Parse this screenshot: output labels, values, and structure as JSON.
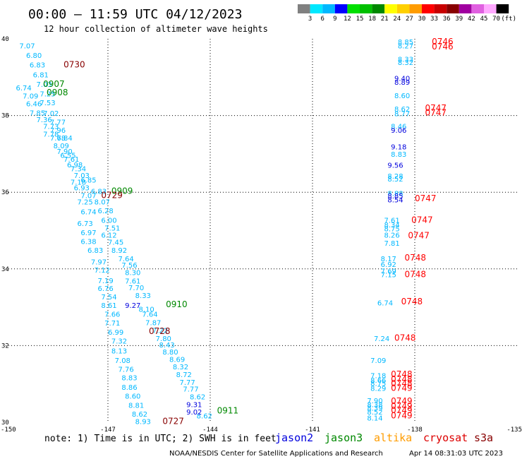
{
  "header": {
    "title": "00:00 – 11:59 UTC 04/12/2023",
    "subtitle": "12 hour collection of altimeter wave heights"
  },
  "colorbar": {
    "labels": [
      "3",
      "6",
      "9",
      "12",
      "15",
      "18",
      "21",
      "24",
      "27",
      "30",
      "33",
      "36",
      "39",
      "42",
      "45",
      "70",
      "(ft)"
    ],
    "colors": [
      "#808080",
      "#00e8ff",
      "#00b8ff",
      "#0000ff",
      "#00e000",
      "#00c000",
      "#008800",
      "#ffff00",
      "#ffd000",
      "#ff9c00",
      "#ff0000",
      "#c80000",
      "#880000",
      "#a000a0",
      "#e060e0",
      "#ffa8ff",
      "#000000"
    ]
  },
  "legend": {
    "note": "note:  1) Time is in UTC; 2) SWH is in feet",
    "satellites": [
      {
        "name": "jason2",
        "color": "#0000dd"
      },
      {
        "name": "jason3",
        "color": "#008800"
      },
      {
        "name": "altika",
        "color": "#ff9c00"
      },
      {
        "name": "cryosat",
        "color": "#dd0000"
      },
      {
        "name": "s3a",
        "color": "#880000"
      }
    ]
  },
  "footer": {
    "credit": "NOAA/NESDIS Center for Satellite Applications and Research",
    "timestamp": "Apr 14 08:31:03 UTC 2023"
  },
  "chart_data": {
    "type": "scatter",
    "title": "00:00 – 11:59 UTC 04/12/2023",
    "subtitle": "12 hour collection of altimeter wave heights",
    "xlim": [
      -150,
      -135
    ],
    "ylim": [
      30,
      40
    ],
    "x_ticks": [
      "-150",
      "-147",
      "-144",
      "-141",
      "-138",
      "-135"
    ],
    "y_ticks": [
      "30",
      "32",
      "34",
      "36",
      "38",
      "40"
    ],
    "grid": true,
    "colors": {
      "cyan": "#00b8ff",
      "blue": "#0000dd",
      "green": "#008800",
      "maroon": "#880000",
      "red": "#ff0000"
    },
    "points": [
      {
        "x": -149.6,
        "y": 39.75,
        "v": "7.07",
        "c": "cyan"
      },
      {
        "x": -149.4,
        "y": 39.5,
        "v": "6.80",
        "c": "cyan"
      },
      {
        "x": -149.3,
        "y": 39.25,
        "v": "6.83",
        "c": "cyan"
      },
      {
        "x": -149.2,
        "y": 39.0,
        "v": "6.81",
        "c": "cyan"
      },
      {
        "x": -149.1,
        "y": 38.75,
        "v": "7.03",
        "c": "cyan"
      },
      {
        "x": -149.7,
        "y": 38.66,
        "v": "6.74",
        "c": "cyan"
      },
      {
        "x": -149.0,
        "y": 38.5,
        "v": "7.25",
        "c": "cyan"
      },
      {
        "x": -149.5,
        "y": 38.44,
        "v": "7.09",
        "c": "cyan"
      },
      {
        "x": -149.0,
        "y": 38.27,
        "v": "7.53",
        "c": "cyan"
      },
      {
        "x": -149.4,
        "y": 38.24,
        "v": "6.46",
        "c": "cyan"
      },
      {
        "x": -149.3,
        "y": 38.0,
        "v": "7.85",
        "c": "cyan"
      },
      {
        "x": -148.9,
        "y": 37.99,
        "v": "7.02",
        "c": "cyan"
      },
      {
        "x": -149.1,
        "y": 37.83,
        "v": "7.36",
        "c": "cyan"
      },
      {
        "x": -148.7,
        "y": 37.76,
        "v": "7.77",
        "c": "cyan"
      },
      {
        "x": -148.9,
        "y": 37.65,
        "v": "7.73",
        "c": "cyan"
      },
      {
        "x": -148.7,
        "y": 37.55,
        "v": "7.96",
        "c": "cyan"
      },
      {
        "x": -148.9,
        "y": 37.45,
        "v": "7.78",
        "c": "cyan"
      },
      {
        "x": -148.7,
        "y": 37.35,
        "v": "7.68",
        "c": "cyan"
      },
      {
        "x": -148.5,
        "y": 37.35,
        "v": "7.84",
        "c": "cyan"
      },
      {
        "x": -148.6,
        "y": 37.15,
        "v": "8.09",
        "c": "cyan"
      },
      {
        "x": -148.5,
        "y": 37.0,
        "v": "7.90",
        "c": "cyan"
      },
      {
        "x": -148.4,
        "y": 36.9,
        "v": "6.55",
        "c": "cyan"
      },
      {
        "x": -148.3,
        "y": 36.8,
        "v": "7.61",
        "c": "cyan"
      },
      {
        "x": -148.2,
        "y": 36.65,
        "v": "6.98",
        "c": "cyan"
      },
      {
        "x": -148.1,
        "y": 36.55,
        "v": "7.34",
        "c": "cyan"
      },
      {
        "x": -148.0,
        "y": 36.37,
        "v": "7.03",
        "c": "cyan"
      },
      {
        "x": -148.0,
        "y": 36.05,
        "v": "6.93",
        "c": "cyan"
      },
      {
        "x": -147.8,
        "y": 36.25,
        "v": "6.85",
        "c": "cyan"
      },
      {
        "x": -148.1,
        "y": 36.2,
        "v": "7.18",
        "c": "cyan"
      },
      {
        "x": -147.5,
        "y": 35.96,
        "v": "6.83",
        "c": "cyan"
      },
      {
        "x": -147.8,
        "y": 35.85,
        "v": "7.07",
        "c": "cyan"
      },
      {
        "x": -147.9,
        "y": 35.68,
        "v": "7.25",
        "c": "cyan"
      },
      {
        "x": -147.4,
        "y": 35.68,
        "v": "8.07",
        "c": "cyan"
      },
      {
        "x": -147.8,
        "y": 35.42,
        "v": "6.74",
        "c": "cyan"
      },
      {
        "x": -147.3,
        "y": 35.45,
        "v": "6.28",
        "c": "cyan"
      },
      {
        "x": -147.9,
        "y": 35.12,
        "v": "6.73",
        "c": "cyan"
      },
      {
        "x": -147.2,
        "y": 35.2,
        "v": "6.00",
        "c": "cyan"
      },
      {
        "x": -147.8,
        "y": 34.88,
        "v": "6.97",
        "c": "cyan"
      },
      {
        "x": -147.1,
        "y": 35.0,
        "v": "7.51",
        "c": "cyan"
      },
      {
        "x": -147.2,
        "y": 34.82,
        "v": "6.12",
        "c": "cyan"
      },
      {
        "x": -147.8,
        "y": 34.65,
        "v": "6.38",
        "c": "cyan"
      },
      {
        "x": -147.0,
        "y": 34.63,
        "v": "7.45",
        "c": "cyan"
      },
      {
        "x": -147.6,
        "y": 34.42,
        "v": "6.83",
        "c": "cyan"
      },
      {
        "x": -146.9,
        "y": 34.42,
        "v": "8.92",
        "c": "cyan"
      },
      {
        "x": -146.7,
        "y": 34.2,
        "v": "7.64",
        "c": "cyan"
      },
      {
        "x": -147.5,
        "y": 34.12,
        "v": "7.97",
        "c": "cyan"
      },
      {
        "x": -146.6,
        "y": 34.03,
        "v": "7.56",
        "c": "cyan"
      },
      {
        "x": -147.4,
        "y": 33.9,
        "v": "7.12",
        "c": "cyan"
      },
      {
        "x": -146.5,
        "y": 33.84,
        "v": "8.30",
        "c": "cyan"
      },
      {
        "x": -147.3,
        "y": 33.63,
        "v": "7.19",
        "c": "cyan"
      },
      {
        "x": -146.5,
        "y": 33.62,
        "v": "7.61",
        "c": "cyan"
      },
      {
        "x": -147.3,
        "y": 33.43,
        "v": "6.76",
        "c": "cyan"
      },
      {
        "x": -146.4,
        "y": 33.44,
        "v": "7.70",
        "c": "cyan"
      },
      {
        "x": -147.2,
        "y": 33.2,
        "v": "7.54",
        "c": "cyan"
      },
      {
        "x": -146.2,
        "y": 33.24,
        "v": "8.33",
        "c": "cyan"
      },
      {
        "x": -147.2,
        "y": 32.98,
        "v": "8.61",
        "c": "cyan"
      },
      {
        "x": -146.1,
        "y": 32.88,
        "v": "8.10",
        "c": "cyan"
      },
      {
        "x": -147.1,
        "y": 32.75,
        "v": "7.66",
        "c": "cyan"
      },
      {
        "x": -146.0,
        "y": 32.75,
        "v": "7.64",
        "c": "cyan"
      },
      {
        "x": -147.1,
        "y": 32.52,
        "v": "7.71",
        "c": "cyan"
      },
      {
        "x": -145.9,
        "y": 32.53,
        "v": "7.87",
        "c": "cyan"
      },
      {
        "x": -147.0,
        "y": 32.28,
        "v": "6.99",
        "c": "cyan"
      },
      {
        "x": -145.7,
        "y": 32.33,
        "v": "7.22",
        "c": "cyan"
      },
      {
        "x": -146.9,
        "y": 32.05,
        "v": "7.32",
        "c": "cyan"
      },
      {
        "x": -145.6,
        "y": 32.12,
        "v": "7.80",
        "c": "cyan"
      },
      {
        "x": -146.9,
        "y": 31.8,
        "v": "8.13",
        "c": "cyan"
      },
      {
        "x": -145.5,
        "y": 31.95,
        "v": "8.43",
        "c": "cyan"
      },
      {
        "x": -145.4,
        "y": 31.77,
        "v": "8.80",
        "c": "cyan"
      },
      {
        "x": -146.8,
        "y": 31.55,
        "v": "7.08",
        "c": "cyan"
      },
      {
        "x": -145.2,
        "y": 31.57,
        "v": "8.69",
        "c": "cyan"
      },
      {
        "x": -146.7,
        "y": 31.32,
        "v": "7.76",
        "c": "cyan"
      },
      {
        "x": -145.1,
        "y": 31.38,
        "v": "8.32",
        "c": "cyan"
      },
      {
        "x": -146.6,
        "y": 31.1,
        "v": "8.83",
        "c": "cyan"
      },
      {
        "x": -145.0,
        "y": 31.18,
        "v": "8.72",
        "c": "cyan"
      },
      {
        "x": -146.6,
        "y": 30.85,
        "v": "8.86",
        "c": "cyan"
      },
      {
        "x": -144.9,
        "y": 30.98,
        "v": "7.77",
        "c": "cyan"
      },
      {
        "x": -146.5,
        "y": 30.62,
        "v": "8.60",
        "c": "cyan"
      },
      {
        "x": -144.8,
        "y": 30.8,
        "v": "7.77",
        "c": "cyan"
      },
      {
        "x": -144.6,
        "y": 30.6,
        "v": "8.62",
        "c": "cyan"
      },
      {
        "x": -146.4,
        "y": 30.38,
        "v": "8.81",
        "c": "cyan"
      },
      {
        "x": -146.3,
        "y": 30.15,
        "v": "8.62",
        "c": "cyan"
      },
      {
        "x": -146.2,
        "y": 29.95,
        "v": "8.93",
        "c": "cyan"
      },
      {
        "x": -144.4,
        "y": 30.1,
        "v": "8.62",
        "c": "cyan"
      },
      {
        "x": -146.5,
        "y": 32.98,
        "v": "9.27",
        "c": "blue"
      },
      {
        "x": -144.7,
        "y": 30.4,
        "v": "9.31",
        "c": "blue"
      },
      {
        "x": -144.7,
        "y": 30.2,
        "v": "9.02",
        "c": "blue"
      },
      {
        "x": -138.5,
        "y": 39.85,
        "v": "8.85",
        "c": "cyan"
      },
      {
        "x": -138.5,
        "y": 39.75,
        "v": "8.27",
        "c": "cyan"
      },
      {
        "x": -138.5,
        "y": 39.4,
        "v": "8.33",
        "c": "cyan"
      },
      {
        "x": -138.5,
        "y": 39.32,
        "v": "8.32",
        "c": "cyan"
      },
      {
        "x": -138.6,
        "y": 38.9,
        "v": "9.40",
        "c": "blue"
      },
      {
        "x": -138.6,
        "y": 38.8,
        "v": "8.89",
        "c": "blue"
      },
      {
        "x": -138.6,
        "y": 38.45,
        "v": "8.60",
        "c": "cyan"
      },
      {
        "x": -138.6,
        "y": 38.1,
        "v": "8.62",
        "c": "cyan"
      },
      {
        "x": -138.6,
        "y": 37.98,
        "v": "8.77",
        "c": "cyan"
      },
      {
        "x": -138.7,
        "y": 37.65,
        "v": "8.46",
        "c": "cyan"
      },
      {
        "x": -138.7,
        "y": 37.55,
        "v": "9.06",
        "c": "blue"
      },
      {
        "x": -138.7,
        "y": 37.12,
        "v": "9.18",
        "c": "blue"
      },
      {
        "x": -138.7,
        "y": 36.92,
        "v": "8.83",
        "c": "cyan"
      },
      {
        "x": -138.8,
        "y": 36.64,
        "v": "9.56",
        "c": "blue"
      },
      {
        "x": -138.8,
        "y": 36.35,
        "v": "8.28",
        "c": "cyan"
      },
      {
        "x": -138.8,
        "y": 36.28,
        "v": "8.52",
        "c": "cyan"
      },
      {
        "x": -138.8,
        "y": 35.9,
        "v": "8.88",
        "c": "cyan"
      },
      {
        "x": -138.8,
        "y": 35.84,
        "v": "8.85",
        "c": "blue"
      },
      {
        "x": -138.8,
        "y": 35.74,
        "v": "8.54",
        "c": "blue"
      },
      {
        "x": -138.9,
        "y": 35.2,
        "v": "7.61",
        "c": "cyan"
      },
      {
        "x": -138.9,
        "y": 35.08,
        "v": "8.34",
        "c": "cyan"
      },
      {
        "x": -138.9,
        "y": 34.98,
        "v": "8.75",
        "c": "cyan"
      },
      {
        "x": -138.9,
        "y": 34.82,
        "v": "8.26",
        "c": "cyan"
      },
      {
        "x": -138.9,
        "y": 34.6,
        "v": "7.81",
        "c": "cyan"
      },
      {
        "x": -139.0,
        "y": 34.2,
        "v": "8.17",
        "c": "cyan"
      },
      {
        "x": -139.0,
        "y": 34.05,
        "v": "6.92",
        "c": "cyan"
      },
      {
        "x": -139.0,
        "y": 33.88,
        "v": "7.69",
        "c": "cyan"
      },
      {
        "x": -139.0,
        "y": 33.78,
        "v": "7.15",
        "c": "cyan"
      },
      {
        "x": -139.1,
        "y": 33.05,
        "v": "6.74",
        "c": "cyan"
      },
      {
        "x": -139.2,
        "y": 32.12,
        "v": "7.24",
        "c": "cyan"
      },
      {
        "x": -139.3,
        "y": 31.55,
        "v": "7.09",
        "c": "cyan"
      },
      {
        "x": -139.3,
        "y": 31.15,
        "v": "7.18",
        "c": "cyan"
      },
      {
        "x": -139.3,
        "y": 31.03,
        "v": "8.66",
        "c": "cyan"
      },
      {
        "x": -139.3,
        "y": 30.95,
        "v": "8.75",
        "c": "cyan"
      },
      {
        "x": -139.3,
        "y": 30.82,
        "v": "8.29",
        "c": "cyan"
      },
      {
        "x": -139.4,
        "y": 30.5,
        "v": "7.90",
        "c": "cyan"
      },
      {
        "x": -139.4,
        "y": 30.4,
        "v": "8.38",
        "c": "cyan"
      },
      {
        "x": -139.4,
        "y": 30.3,
        "v": "8.39",
        "c": "cyan"
      },
      {
        "x": -139.4,
        "y": 30.2,
        "v": "8.52",
        "c": "cyan"
      },
      {
        "x": -139.4,
        "y": 30.05,
        "v": "8.14",
        "c": "cyan"
      }
    ],
    "time_labels": [
      {
        "x": -148.3,
        "y": 39.25,
        "t": "0730",
        "c": "maroon"
      },
      {
        "x": -148.9,
        "y": 38.75,
        "t": "0907",
        "c": "green"
      },
      {
        "x": -148.8,
        "y": 38.53,
        "t": "0908",
        "c": "green"
      },
      {
        "x": -146.9,
        "y": 35.96,
        "t": "0909",
        "c": "green"
      },
      {
        "x": -147.2,
        "y": 35.85,
        "t": "0729",
        "c": "maroon"
      },
      {
        "x": -145.3,
        "y": 33.0,
        "t": "0910",
        "c": "green"
      },
      {
        "x": -145.8,
        "y": 32.3,
        "t": "0728",
        "c": "maroon"
      },
      {
        "x": -143.8,
        "y": 30.23,
        "t": "0911",
        "c": "green"
      },
      {
        "x": -145.4,
        "y": 29.95,
        "t": "0727",
        "c": "maroon"
      },
      {
        "x": -137.5,
        "y": 39.85,
        "t": "0746",
        "c": "red"
      },
      {
        "x": -137.5,
        "y": 39.72,
        "t": "0746",
        "c": "red"
      },
      {
        "x": -137.7,
        "y": 38.12,
        "t": "0747",
        "c": "red"
      },
      {
        "x": -137.7,
        "y": 38.0,
        "t": "0747",
        "c": "red"
      },
      {
        "x": -138.0,
        "y": 35.76,
        "t": "0747",
        "c": "red"
      },
      {
        "x": -138.1,
        "y": 35.2,
        "t": "0747",
        "c": "red"
      },
      {
        "x": -138.2,
        "y": 34.8,
        "t": "0747",
        "c": "red"
      },
      {
        "x": -138.3,
        "y": 34.22,
        "t": "0748",
        "c": "red"
      },
      {
        "x": -138.3,
        "y": 33.78,
        "t": "0748",
        "c": "red"
      },
      {
        "x": -138.4,
        "y": 33.08,
        "t": "0748",
        "c": "red"
      },
      {
        "x": -138.6,
        "y": 32.13,
        "t": "0748",
        "c": "red"
      },
      {
        "x": -138.7,
        "y": 31.18,
        "t": "0748",
        "c": "red"
      },
      {
        "x": -138.7,
        "y": 31.05,
        "t": "0748",
        "c": "red"
      },
      {
        "x": -138.7,
        "y": 30.94,
        "t": "0748",
        "c": "red"
      },
      {
        "x": -138.7,
        "y": 30.82,
        "t": "0749",
        "c": "red"
      },
      {
        "x": -138.7,
        "y": 30.48,
        "t": "0749",
        "c": "red"
      },
      {
        "x": -138.7,
        "y": 30.35,
        "t": "0749",
        "c": "red"
      },
      {
        "x": -138.7,
        "y": 30.24,
        "t": "0749",
        "c": "red"
      },
      {
        "x": -138.7,
        "y": 30.1,
        "t": "0749",
        "c": "red"
      }
    ]
  }
}
